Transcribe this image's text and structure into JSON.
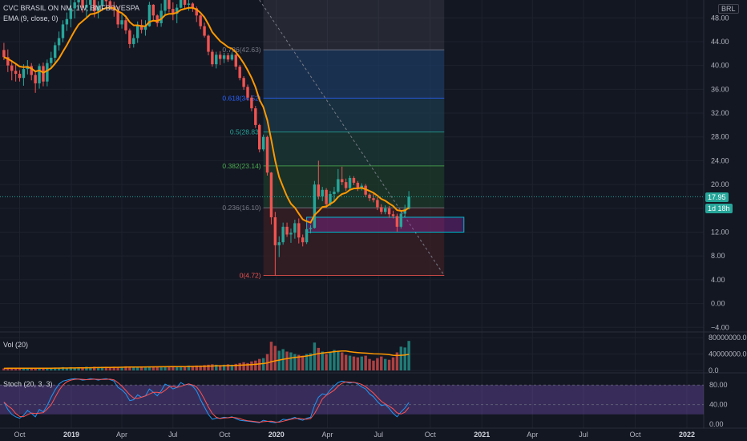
{
  "header": {
    "symbol_title": "CVC BRASIL ON NM, 1W, BMFBOVESPA",
    "indicator_ema": "EMA (9, close, 0)",
    "currency": "BRL"
  },
  "price_badges": {
    "last_price": "17.95",
    "countdown": "1d 18h"
  },
  "colors": {
    "background": "#131722",
    "grid": "#1e222d",
    "up": "#26a69a",
    "down": "#ef5350",
    "ema": "#ff9800",
    "stoch_k": "#2196f3",
    "stoch_d": "#ff5252",
    "stoch_band": "#7e57c2",
    "zone_box": "#00bcd4",
    "axis_text": "#b2b5be"
  },
  "chart_data": [
    {
      "type": "candlestick",
      "title": "CVC BRASIL ON NM, 1W, BMFBOVESPA",
      "y_ticks": [
        -4.0,
        0.0,
        4.0,
        8.0,
        12.0,
        16.0,
        20.0,
        24.0,
        28.0,
        32.0,
        36.0,
        40.0,
        44.0,
        48.0
      ],
      "y_tick_labels": [
        "−4.00",
        "0.00",
        "4.00",
        "8.00",
        "12.00",
        "16.00",
        "20.00",
        "24.00",
        "28.00",
        "32.00",
        "36.00",
        "40.00",
        "44.00",
        "48.00"
      ],
      "ylim": [
        -4.5,
        51
      ],
      "x_tick_labels": [
        "Oct",
        "2019",
        "Apr",
        "Jul",
        "Oct",
        "2020",
        "Apr",
        "Jul",
        "Oct",
        "2021",
        "Apr",
        "Jul",
        "Oct",
        "2022"
      ],
      "x_tick_dates": [
        "2018-10-01",
        "2019-01-01",
        "2019-04-01",
        "2019-07-01",
        "2019-10-01",
        "2020-01-01",
        "2020-04-01",
        "2020-07-01",
        "2020-10-01",
        "2021-01-01",
        "2021-04-01",
        "2021-07-01",
        "2021-10-01",
        "2022-01-01"
      ],
      "xlim": [
        "2018-08-27",
        "2022-01-31"
      ],
      "series": [
        {
          "type": "ohlc-weekly",
          "values": [
            [
              42.6,
              43.8,
              40.9,
              41.4
            ],
            [
              41.4,
              42.7,
              38.9,
              40.0
            ],
            [
              40.0,
              40.9,
              37.5,
              39.1
            ],
            [
              39.1,
              40.4,
              37.3,
              38.6
            ],
            [
              38.6,
              39.2,
              37.3,
              37.9
            ],
            [
              37.9,
              40.2,
              36.6,
              39.4
            ],
            [
              39.4,
              40.9,
              38.5,
              39.9
            ],
            [
              39.9,
              40.4,
              37.5,
              38.4
            ],
            [
              38.4,
              38.9,
              35.4,
              37.0
            ],
            [
              37.0,
              40.3,
              36.1,
              39.9
            ],
            [
              39.9,
              40.5,
              36.5,
              37.3
            ],
            [
              37.3,
              41.0,
              36.5,
              40.4
            ],
            [
              40.4,
              42.3,
              39.6,
              41.3
            ],
            [
              41.3,
              43.9,
              40.2,
              43.4
            ],
            [
              43.4,
              45.7,
              42.5,
              44.6
            ],
            [
              44.6,
              47.6,
              43.9,
              46.9
            ],
            [
              46.9,
              48.9,
              45.8,
              47.8
            ],
            [
              47.8,
              51.5,
              46.4,
              49.6
            ],
            [
              49.6,
              51.0,
              47.9,
              50.6
            ],
            [
              50.6,
              51.4,
              49.5,
              51.0
            ],
            [
              51.0,
              51.4,
              48.9,
              49.7
            ],
            [
              49.7,
              51.4,
              48.1,
              50.2
            ],
            [
              50.2,
              51.6,
              49.1,
              51.1
            ],
            [
              51.1,
              51.5,
              48.1,
              49.1
            ],
            [
              49.1,
              50.8,
              47.9,
              50.0
            ],
            [
              50.0,
              51.4,
              49.2,
              51.0
            ],
            [
              51.0,
              51.5,
              49.6,
              50.8
            ],
            [
              50.8,
              51.5,
              49.3,
              49.9
            ],
            [
              49.9,
              50.7,
              48.2,
              49.3
            ],
            [
              49.3,
              49.9,
              46.3,
              46.9
            ],
            [
              46.9,
              48.6,
              46.2,
              47.6
            ],
            [
              47.6,
              48.4,
              45.3,
              45.9
            ],
            [
              45.9,
              46.2,
              42.9,
              43.6
            ],
            [
              43.6,
              45.2,
              43.0,
              44.6
            ],
            [
              44.6,
              47.4,
              43.8,
              46.8
            ],
            [
              46.8,
              47.7,
              45.4,
              46.0
            ],
            [
              46.0,
              47.6,
              45.0,
              46.6
            ],
            [
              46.6,
              50.7,
              46.5,
              50.2
            ],
            [
              50.2,
              50.3,
              47.5,
              48.4
            ],
            [
              48.4,
              48.6,
              46.5,
              47.1
            ],
            [
              47.1,
              50.4,
              46.5,
              49.2
            ],
            [
              49.2,
              51.5,
              48.6,
              51.1
            ],
            [
              51.1,
              51.3,
              48.9,
              49.5
            ],
            [
              49.5,
              50.6,
              47.6,
              48.7
            ],
            [
              48.7,
              50.3,
              47.1,
              49.7
            ],
            [
              49.7,
              51.6,
              49.6,
              51.2
            ],
            [
              51.2,
              51.5,
              49.5,
              50.2
            ],
            [
              50.2,
              51.7,
              49.2,
              50.4
            ],
            [
              50.4,
              50.6,
              49.0,
              49.6
            ],
            [
              49.6,
              49.9,
              47.3,
              48.4
            ],
            [
              48.4,
              48.6,
              46.1,
              46.6
            ],
            [
              46.6,
              47.2,
              44.7,
              45.0
            ],
            [
              45.0,
              45.2,
              41.7,
              42.3
            ],
            [
              42.3,
              42.7,
              39.8,
              40.2
            ],
            [
              40.2,
              42.3,
              39.5,
              41.8
            ],
            [
              41.8,
              42.4,
              40.1,
              41.1
            ],
            [
              41.1,
              42.1,
              40.4,
              41.7
            ],
            [
              41.7,
              42.1,
              40.6,
              41.0
            ],
            [
              41.0,
              42.2,
              40.8,
              41.8
            ],
            [
              41.8,
              41.9,
              39.3,
              39.8
            ],
            [
              39.8,
              40.1,
              37.5,
              37.9
            ],
            [
              37.9,
              38.2,
              35.9,
              36.4
            ],
            [
              36.4,
              36.8,
              34.1,
              34.6
            ],
            [
              34.6,
              35.0,
              32.3,
              32.8
            ],
            [
              32.8,
              33.2,
              29.5,
              30.0
            ],
            [
              30.0,
              30.2,
              25.4,
              25.9
            ],
            [
              25.9,
              28.4,
              25.6,
              28.0
            ],
            [
              28.0,
              28.2,
              21.5,
              22.0
            ],
            [
              22.0,
              22.1,
              13.3,
              14.5
            ],
            [
              14.5,
              15.4,
              4.72,
              9.8
            ],
            [
              9.8,
              11.3,
              7.8,
              10.3
            ],
            [
              10.3,
              13.6,
              9.9,
              12.9
            ],
            [
              12.9,
              13.6,
              11.2,
              11.6
            ],
            [
              11.6,
              12.6,
              10.2,
              11.9
            ],
            [
              11.9,
              14.1,
              10.9,
              13.5
            ],
            [
              13.5,
              14.3,
              10.1,
              11.1
            ],
            [
              11.1,
              11.6,
              9.6,
              10.3
            ],
            [
              10.3,
              13.0,
              10.0,
              12.5
            ],
            [
              12.5,
              13.2,
              11.8,
              12.7
            ],
            [
              12.7,
              20.6,
              12.6,
              20.0
            ],
            [
              20.0,
              24.0,
              17.5,
              18.0
            ],
            [
              18.0,
              19.6,
              17.2,
              19.1
            ],
            [
              19.1,
              19.4,
              16.1,
              16.7
            ],
            [
              16.7,
              18.9,
              16.4,
              18.4
            ],
            [
              18.4,
              19.6,
              17.3,
              18.8
            ],
            [
              18.8,
              22.6,
              18.5,
              20.9
            ],
            [
              20.9,
              23.0,
              19.9,
              20.4
            ],
            [
              20.4,
              21.0,
              18.9,
              19.4
            ],
            [
              19.4,
              21.5,
              19.2,
              21.1
            ],
            [
              21.1,
              21.4,
              19.9,
              20.3
            ],
            [
              20.3,
              20.6,
              18.9,
              19.4
            ],
            [
              19.4,
              20.2,
              19.0,
              19.8
            ],
            [
              19.8,
              20.1,
              17.9,
              18.3
            ],
            [
              18.3,
              18.5,
              17.2,
              17.7
            ],
            [
              17.7,
              18.6,
              17.0,
              17.4
            ],
            [
              17.4,
              17.9,
              15.7,
              16.2
            ],
            [
              16.2,
              16.7,
              15.0,
              15.4
            ],
            [
              15.4,
              16.5,
              15.0,
              16.0
            ],
            [
              16.0,
              16.4,
              14.4,
              15.0
            ],
            [
              15.0,
              15.6,
              14.3,
              14.7
            ],
            [
              14.7,
              15.1,
              12.1,
              12.9
            ],
            [
              12.9,
              15.6,
              12.6,
              15.1
            ],
            [
              15.1,
              16.6,
              14.6,
              15.9
            ],
            [
              15.9,
              18.9,
              15.8,
              17.95
            ]
          ],
          "first_bar_date": "2018-09-03"
        },
        {
          "name": "EMA (9, close, 0)",
          "period": 9,
          "source": "close"
        }
      ],
      "fibonacci_retracement": {
        "from_date": "2019-12-09",
        "to_date": "2020-10-26",
        "levels": [
          {
            "ratio_label": "0.786",
            "price": 42.63,
            "label": "0.786(42.63)"
          },
          {
            "ratio_label": "0.618",
            "price": 34.52,
            "label": "0.618(34.52)"
          },
          {
            "ratio_label": "0.5",
            "price": 28.83,
            "label": "0.5(28.83)"
          },
          {
            "ratio_label": "0.382",
            "price": 23.14,
            "label": "0.382(23.14)"
          },
          {
            "ratio_label": "0.236",
            "price": 16.1,
            "label": "0.236(16.10)"
          },
          {
            "ratio_label": "0",
            "price": 4.72,
            "label": "0(4.72)"
          }
        ],
        "top_shade_to_price": 51.5
      },
      "zone_box": {
        "from_date": "2020-02-24",
        "to_date": "2020-11-30",
        "top": 14.5,
        "bottom": 12.0
      },
      "trend_line": {
        "from_date": "2019-12-02",
        "from_price": 51.0,
        "to_date": "2020-10-26",
        "to_price": 4.72
      },
      "last_price": 17.95
    },
    {
      "type": "bar",
      "title": "Vol (20)",
      "y_tick_labels": [
        "0.0",
        "40000000.0",
        "80000000.0"
      ],
      "y_ticks": [
        0,
        40000000,
        80000000
      ],
      "ylim": [
        0,
        90000000
      ],
      "values_million": [
        5,
        6,
        5,
        6,
        5,
        6,
        5,
        6,
        5,
        6,
        5,
        6,
        6,
        7,
        7,
        8,
        7,
        8,
        7,
        8,
        8,
        9,
        8,
        9,
        8,
        9,
        9,
        8,
        9,
        8,
        9,
        10,
        9,
        8,
        9,
        10,
        9,
        10,
        9,
        10,
        9,
        10,
        10,
        11,
        10,
        11,
        10,
        12,
        11,
        12,
        12,
        13,
        14,
        15,
        14,
        13,
        14,
        15,
        14,
        16,
        18,
        20,
        18,
        22,
        24,
        28,
        30,
        40,
        70,
        60,
        48,
        52,
        46,
        44,
        40,
        38,
        36,
        40,
        42,
        68,
        55,
        46,
        40,
        44,
        50,
        48,
        44,
        38,
        36,
        34,
        32,
        34,
        36,
        28,
        24,
        30,
        34,
        28,
        26,
        32,
        44,
        58,
        56,
        72
      ],
      "ma_period": 20
    },
    {
      "type": "line",
      "title": "Stoch (20, 3, 3)",
      "y_tick_labels": [
        "0.00",
        "40.00",
        "80.00"
      ],
      "y_ticks": [
        0,
        40,
        80
      ],
      "ylim": [
        -5,
        100
      ],
      "band": [
        20,
        80
      ],
      "k_values": [
        45,
        30,
        20,
        15,
        12,
        18,
        28,
        22,
        15,
        30,
        25,
        38,
        55,
        70,
        82,
        88,
        90,
        92,
        93,
        92,
        90,
        91,
        93,
        92,
        90,
        92,
        93,
        91,
        88,
        75,
        70,
        62,
        48,
        50,
        60,
        55,
        58,
        72,
        65,
        58,
        68,
        82,
        78,
        72,
        75,
        85,
        80,
        82,
        78,
        68,
        50,
        35,
        20,
        10,
        12,
        12,
        14,
        13,
        15,
        11,
        8,
        7,
        6,
        5,
        4,
        3,
        8,
        6,
        4,
        3,
        5,
        10,
        9,
        11,
        14,
        10,
        8,
        12,
        14,
        38,
        55,
        62,
        60,
        70,
        78,
        85,
        88,
        86,
        84,
        86,
        82,
        76,
        72,
        62,
        56,
        46,
        38,
        40,
        32,
        22,
        15,
        25,
        33,
        44
      ],
      "d_smoothing": 3
    }
  ]
}
